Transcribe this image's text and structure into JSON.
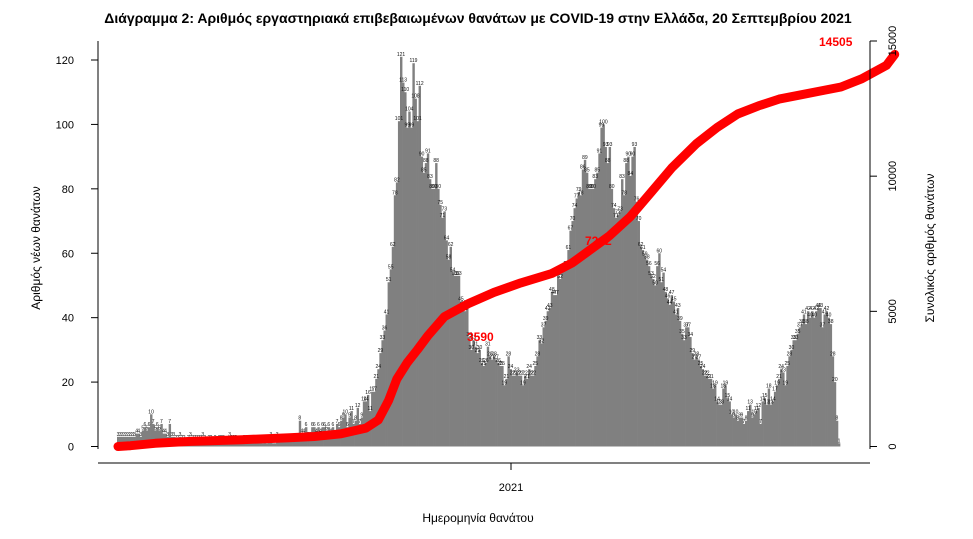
{
  "chart_data": {
    "type": "bar",
    "title": "Διάγραμμα 2: Αριθμός εργαστηριακά επιβεβαιωμένων θανάτων με COVID-19 στην Ελλάδα, 20 Σεπτεμβρίου 2021",
    "xlabel": "Ημερομηνία θανάτου",
    "ylabel": "Αριθμός νέων θανάτων",
    "ylabel_right": "Συνολικός αριθμός θανάτων",
    "x_tick_label": "2021",
    "ylim": [
      0,
      125
    ],
    "y_ticks": [
      0,
      20,
      40,
      60,
      80,
      100,
      120
    ],
    "y2lim": [
      0,
      15000
    ],
    "y2_ticks": [
      0,
      5000,
      10000,
      15000
    ],
    "bar_color": "#808080",
    "line_color": "#ff0000",
    "grid": false,
    "series": [
      {
        "name": "Αριθμός νέων θανάτων",
        "type": "bar",
        "values": [
          3,
          3,
          3,
          3,
          3,
          3,
          3,
          3,
          3,
          4,
          4,
          3,
          5,
          6,
          5,
          6,
          10,
          7,
          5,
          6,
          5,
          7,
          4,
          4,
          3,
          7,
          3,
          3,
          2,
          2,
          3,
          2,
          2,
          1,
          2,
          3,
          2,
          2,
          2,
          2,
          2,
          3,
          2,
          1,
          2,
          2,
          1,
          2,
          1,
          2,
          2,
          2,
          1,
          1,
          3,
          2,
          2,
          2,
          1,
          1,
          1,
          2,
          2,
          1,
          1,
          2,
          2,
          2,
          1,
          2,
          1,
          2,
          1,
          2,
          3,
          1,
          1,
          3,
          2,
          2,
          2,
          2,
          2,
          2,
          2,
          2,
          2,
          2,
          8,
          4,
          4,
          6,
          3,
          3,
          6,
          6,
          4,
          6,
          4,
          6,
          6,
          5,
          6,
          4,
          6,
          3,
          7,
          6,
          8,
          9,
          10,
          6,
          9,
          11,
          7,
          8,
          12,
          7,
          9,
          14,
          14,
          16,
          11,
          17,
          17,
          21,
          24,
          29,
          33,
          36,
          41,
          51,
          55,
          62,
          78,
          82,
          101,
          121,
          113,
          110,
          99,
          104,
          99,
          119,
          108,
          101,
          112,
          90,
          85,
          88,
          91,
          83,
          80,
          80,
          88,
          80,
          75,
          71,
          73,
          64,
          58,
          62,
          54,
          53,
          53,
          53,
          45,
          44,
          42,
          43,
          34,
          30,
          33,
          31,
          29,
          30,
          26,
          25,
          26,
          31,
          28,
          27,
          28,
          27,
          26,
          25,
          25,
          19,
          21,
          28,
          24,
          22,
          22,
          23,
          22,
          22,
          19,
          22,
          21,
          24,
          22,
          22,
          25,
          28,
          33,
          32,
          37,
          39,
          42,
          43,
          48,
          47,
          47,
          53,
          52,
          55,
          55,
          56,
          61,
          67,
          70,
          74,
          77,
          79,
          78,
          86,
          89,
          85,
          80,
          80,
          80,
          83,
          85,
          91,
          99,
          100,
          93,
          88,
          93,
          80,
          74,
          71,
          72,
          73,
          83,
          78,
          88,
          90,
          84,
          90,
          93,
          76,
          70,
          62,
          61,
          59,
          58,
          56,
          53,
          52,
          50,
          56,
          60,
          51,
          54,
          48,
          46,
          44,
          47,
          45,
          41,
          43,
          39,
          35,
          33,
          37,
          37,
          34,
          29,
          27,
          28,
          27,
          25,
          24,
          22,
          22,
          21,
          21,
          18,
          19,
          14,
          13,
          13,
          18,
          19,
          15,
          14,
          10,
          9,
          10,
          8,
          9,
          9,
          7,
          8,
          11,
          13,
          9,
          10,
          11,
          12,
          7,
          14,
          15,
          13,
          18,
          13,
          14,
          17,
          19,
          21,
          24,
          23,
          19,
          25,
          28,
          30,
          33,
          33,
          35,
          37,
          38,
          41,
          38,
          42,
          40,
          42,
          40,
          42,
          43,
          43,
          37,
          41,
          42,
          40,
          38,
          28,
          20,
          8,
          1
        ]
      },
      {
        "name": "Συνολικός αριθμός θανάτων",
        "type": "line",
        "x_index": [
          0,
          6,
          18,
          35,
          60,
          83,
          95,
          108,
          120,
          126,
          131,
          135,
          140,
          145,
          150,
          158,
          170,
          182,
          195,
          210,
          220,
          228,
          238,
          248,
          258,
          268,
          280,
          290,
          300,
          310,
          320,
          330,
          340,
          350,
          360,
          372,
          376
        ],
        "values": [
          0,
          30,
          120,
          190,
          250,
          320,
          370,
          470,
          680,
          980,
          1700,
          2500,
          3100,
          3590,
          4100,
          4800,
          5300,
          5700,
          6050,
          6400,
          6800,
          7242,
          7800,
          8500,
          9400,
          10300,
          11200,
          11800,
          12300,
          12600,
          12850,
          13000,
          13150,
          13300,
          13600,
          14100,
          14505
        ]
      }
    ],
    "annotations": [
      "3590",
      "7242",
      "14505"
    ]
  }
}
